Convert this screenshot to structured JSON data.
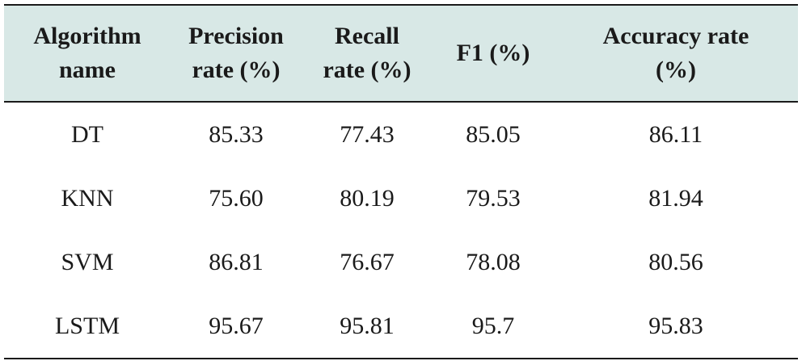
{
  "table": {
    "headers": [
      [
        "Algorithm",
        "name"
      ],
      [
        "Precision",
        "rate (%)"
      ],
      [
        "Recall",
        "rate (%)"
      ],
      [
        "F1 (%)"
      ],
      [
        "Accuracy rate",
        "(%)"
      ]
    ],
    "rows": [
      [
        "DT",
        "85.33",
        "77.43",
        "85.05",
        "86.11"
      ],
      [
        "KNN",
        "75.60",
        "80.19",
        "79.53",
        "81.94"
      ],
      [
        "SVM",
        "86.81",
        "76.67",
        "78.08",
        "80.56"
      ],
      [
        "LSTM",
        "95.67",
        "95.81",
        "95.7",
        "95.83"
      ]
    ]
  }
}
